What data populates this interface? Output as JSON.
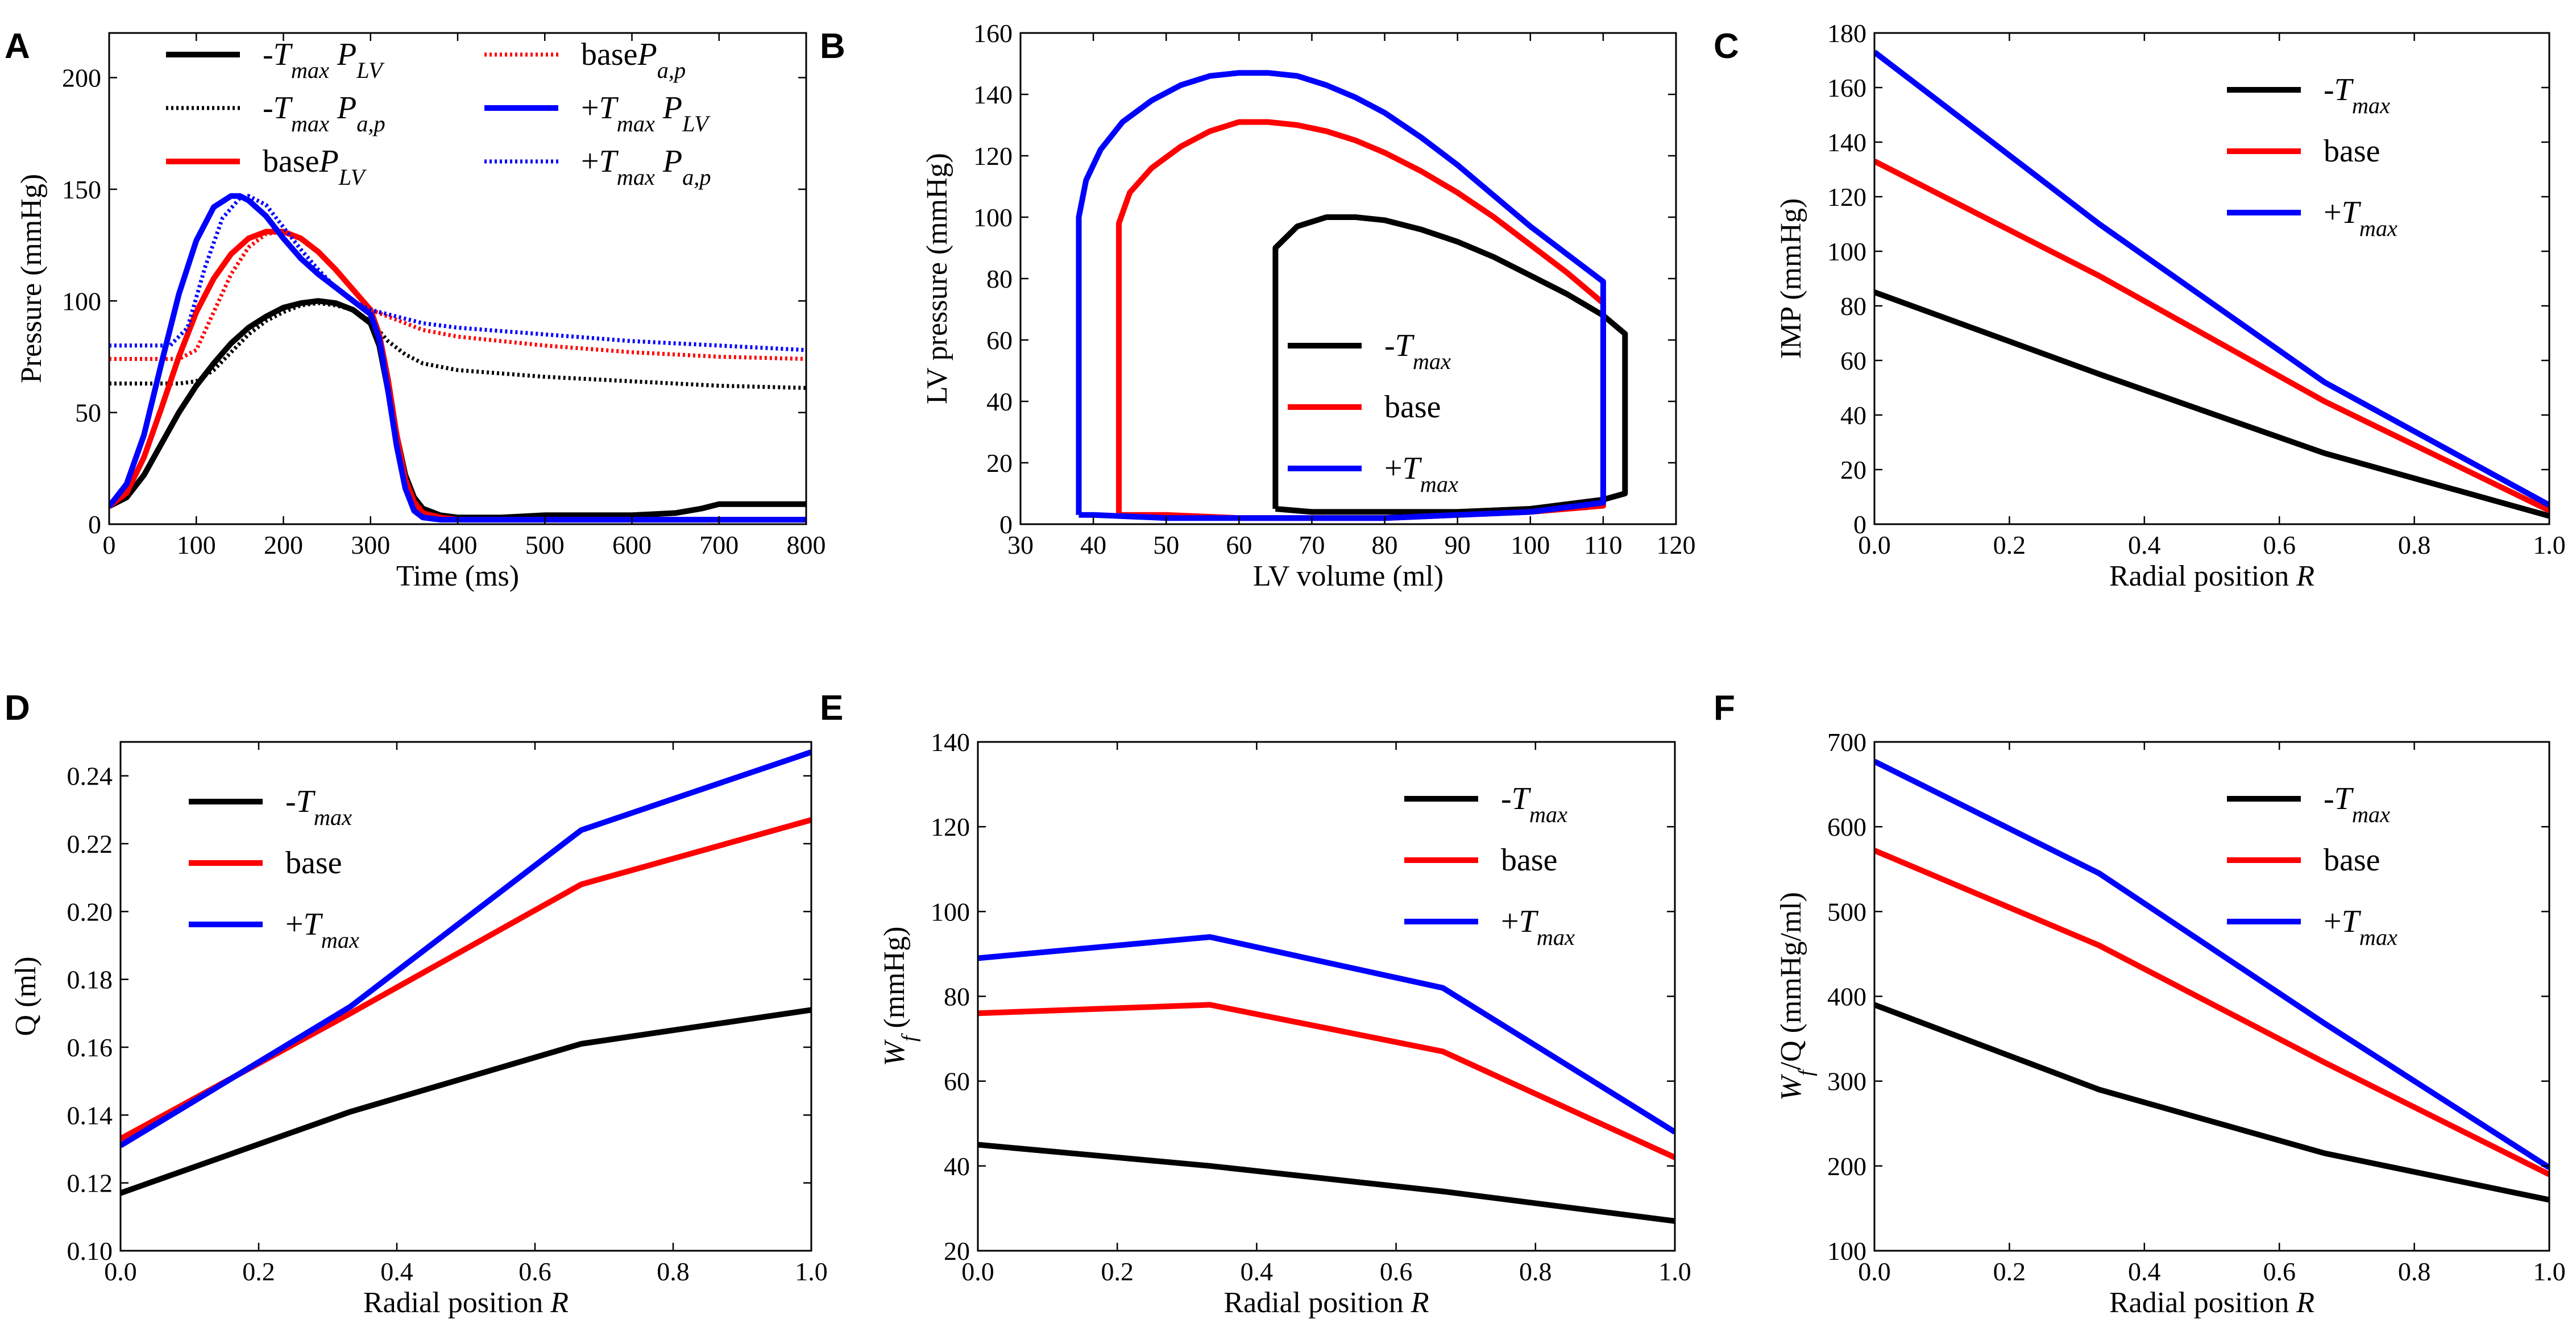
{
  "colors": {
    "minus": "#000000",
    "base": "#ff0000",
    "plus": "#0000ff"
  },
  "chart_data": [
    {
      "panel": "A",
      "type": "line",
      "xlabel": "Time (ms)",
      "ylabel": "Pressure (mmHg)",
      "xlim": [
        0,
        800
      ],
      "ylim": [
        0,
        220
      ],
      "xticks": [
        0,
        100,
        200,
        300,
        400,
        500,
        600,
        700,
        800
      ],
      "yticks": [
        0,
        50,
        100,
        150,
        200
      ],
      "legend": {
        "placement": "top",
        "columns": 2
      },
      "series": [
        {
          "name": "-T_max P_LV",
          "legend_main": "-T",
          "legend_sub": "max",
          "legend_tail": " P",
          "legend_tail_sub": "LV",
          "color": "#000000",
          "dashed": false,
          "x": [
            0,
            20,
            40,
            60,
            80,
            100,
            120,
            140,
            160,
            180,
            200,
            220,
            240,
            260,
            280,
            300,
            310,
            320,
            330,
            340,
            350,
            360,
            380,
            400,
            450,
            500,
            550,
            600,
            650,
            680,
            700,
            720,
            750,
            800
          ],
          "y": [
            8,
            12,
            22,
            36,
            50,
            62,
            72,
            81,
            88,
            93,
            97,
            99,
            100,
            99,
            96,
            90,
            80,
            60,
            40,
            22,
            12,
            7,
            4,
            3,
            3,
            4,
            4,
            4,
            5,
            7,
            9,
            9,
            9,
            9
          ]
        },
        {
          "name": "-T_max P_a,p",
          "legend_main": "-T",
          "legend_sub": "max",
          "legend_tail": " P",
          "legend_tail_sub": "a,p",
          "color": "#000000",
          "dashed": true,
          "x": [
            0,
            40,
            80,
            100,
            120,
            140,
            160,
            180,
            200,
            220,
            240,
            260,
            280,
            300,
            320,
            340,
            360,
            400,
            500,
            600,
            700,
            800
          ],
          "y": [
            63,
            63,
            63,
            64,
            69,
            77,
            85,
            91,
            95,
            98,
            99,
            98,
            96,
            91,
            82,
            76,
            72,
            69,
            66,
            64,
            62,
            61
          ]
        },
        {
          "name": "base P_LV",
          "legend_main": "base",
          "legend_sub": "",
          "legend_tail": "P",
          "legend_tail_sub": "LV",
          "color": "#ff0000",
          "dashed": false,
          "x": [
            0,
            20,
            40,
            60,
            80,
            100,
            120,
            140,
            160,
            180,
            200,
            220,
            240,
            260,
            280,
            300,
            310,
            320,
            330,
            340,
            350,
            360,
            380,
            400,
            500,
            600,
            700,
            800
          ],
          "y": [
            8,
            14,
            30,
            52,
            75,
            95,
            110,
            121,
            128,
            131,
            131,
            128,
            122,
            114,
            105,
            96,
            85,
            65,
            40,
            20,
            10,
            5,
            3,
            2,
            2,
            2,
            2,
            2
          ]
        },
        {
          "name": "base P_a,p",
          "legend_main": "base",
          "legend_sub": "",
          "legend_tail": "P",
          "legend_tail_sub": "a,p",
          "color": "#ff0000",
          "dashed": true,
          "x": [
            0,
            40,
            80,
            100,
            120,
            140,
            160,
            180,
            200,
            220,
            240,
            260,
            280,
            300,
            320,
            340,
            360,
            400,
            500,
            600,
            700,
            800
          ],
          "y": [
            74,
            74,
            74,
            78,
            95,
            112,
            124,
            130,
            131,
            128,
            122,
            114,
            105,
            96,
            93,
            90,
            87,
            84,
            80,
            77,
            75,
            74
          ]
        },
        {
          "name": "+T_max P_LV",
          "legend_main": "+T",
          "legend_sub": "max",
          "legend_tail": " P",
          "legend_tail_sub": "LV",
          "color": "#0000ff",
          "dashed": false,
          "x": [
            0,
            20,
            40,
            60,
            80,
            100,
            120,
            140,
            150,
            160,
            180,
            200,
            220,
            240,
            260,
            280,
            300,
            310,
            320,
            330,
            340,
            350,
            360,
            380,
            400,
            500,
            600,
            700,
            800
          ],
          "y": [
            8,
            18,
            40,
            72,
            103,
            127,
            142,
            147,
            147,
            145,
            138,
            128,
            119,
            112,
            106,
            100,
            94,
            83,
            60,
            35,
            16,
            6,
            3,
            2,
            2,
            2,
            2,
            2,
            2
          ]
        },
        {
          "name": "+T_max P_a,p",
          "legend_main": "+T",
          "legend_sub": "max",
          "legend_tail": " P",
          "legend_tail_sub": "a,p",
          "color": "#0000ff",
          "dashed": true,
          "x": [
            0,
            40,
            70,
            90,
            110,
            130,
            150,
            160,
            180,
            200,
            220,
            240,
            260,
            280,
            300,
            320,
            340,
            360,
            400,
            500,
            600,
            700,
            800
          ],
          "y": [
            80,
            80,
            80,
            88,
            115,
            137,
            146,
            147,
            143,
            133,
            123,
            114,
            106,
            100,
            96,
            94,
            92,
            90,
            88,
            85,
            82,
            80,
            78
          ]
        }
      ]
    },
    {
      "panel": "B",
      "type": "line",
      "xlabel": "LV volume (ml)",
      "ylabel": "LV pressure (mmHg)",
      "xlim": [
        30,
        120
      ],
      "ylim": [
        0,
        160
      ],
      "xticks": [
        30,
        40,
        50,
        60,
        70,
        80,
        90,
        100,
        110,
        120
      ],
      "yticks": [
        0,
        20,
        40,
        60,
        80,
        100,
        120,
        140,
        160
      ],
      "legend": {
        "placement": "lower-right"
      },
      "series": [
        {
          "name": "-T_max",
          "legend_main": "-T",
          "legend_sub": "max",
          "color": "#000000",
          "x": [
            65,
            65,
            68,
            72,
            76,
            80,
            85,
            90,
            95,
            100,
            105,
            110,
            113,
            113,
            110,
            100,
            90,
            80,
            70,
            65
          ],
          "y": [
            5,
            90,
            97,
            100,
            100,
            99,
            96,
            92,
            87,
            81,
            75,
            68,
            62,
            10,
            8,
            5,
            4,
            4,
            4,
            5
          ]
        },
        {
          "name": "base",
          "legend_main": "base",
          "legend_sub": "",
          "color": "#ff0000",
          "x": [
            43.5,
            43.5,
            45,
            48,
            52,
            56,
            60,
            64,
            68,
            72,
            76,
            80,
            85,
            90,
            95,
            100,
            105,
            110,
            110,
            100,
            90,
            80,
            70,
            60,
            50,
            43.5
          ],
          "y": [
            3,
            98,
            108,
            116,
            123,
            128,
            131,
            131,
            130,
            128,
            125,
            121,
            115,
            108,
            100,
            91,
            82,
            72,
            6,
            4,
            3,
            2,
            2,
            2,
            3,
            3
          ]
        },
        {
          "name": "+T_max",
          "legend_main": "+T",
          "legend_sub": "max",
          "color": "#0000ff",
          "x": [
            38,
            38,
            39,
            41,
            44,
            48,
            52,
            56,
            60,
            64,
            68,
            72,
            76,
            80,
            85,
            90,
            95,
            100,
            105,
            110,
            110,
            100,
            90,
            80,
            70,
            60,
            50,
            40,
            38
          ],
          "y": [
            3,
            100,
            112,
            122,
            131,
            138,
            143,
            146,
            147,
            147,
            146,
            143,
            139,
            134,
            126,
            117,
            107,
            97,
            88,
            79,
            7,
            4,
            3,
            2,
            2,
            2,
            2,
            3,
            3
          ]
        }
      ]
    },
    {
      "panel": "C",
      "type": "line",
      "xlabel": "Radial position R",
      "ylabel": "IMP (mmHg)",
      "xlim": [
        0,
        1
      ],
      "ylim": [
        0,
        180
      ],
      "xticks": [
        0.0,
        0.2,
        0.4,
        0.6,
        0.8,
        1.0
      ],
      "yticks": [
        0,
        20,
        40,
        60,
        80,
        100,
        120,
        140,
        160,
        180
      ],
      "legend": {
        "placement": "top-right"
      },
      "series": [
        {
          "name": "-T_max",
          "legend_main": "-T",
          "legend_sub": "max",
          "color": "#000000",
          "x": [
            0,
            0.333,
            0.667,
            1.0
          ],
          "y": [
            85,
            55,
            26,
            3
          ]
        },
        {
          "name": "base",
          "legend_main": "base",
          "legend_sub": "",
          "color": "#ff0000",
          "x": [
            0,
            0.333,
            0.667,
            1.0
          ],
          "y": [
            133,
            91,
            45,
            5
          ]
        },
        {
          "name": "+T_max",
          "legend_main": "+T",
          "legend_sub": "max",
          "color": "#0000ff",
          "x": [
            0,
            0.333,
            0.667,
            1.0
          ],
          "y": [
            173,
            110,
            52,
            7
          ]
        }
      ]
    },
    {
      "panel": "D",
      "type": "line",
      "xlabel": "Radial position R",
      "ylabel": "Q (ml)",
      "xlim": [
        0,
        1
      ],
      "ylim": [
        0.1,
        0.25
      ],
      "xticks": [
        0.0,
        0.2,
        0.4,
        0.6,
        0.8,
        1.0
      ],
      "yticks": [
        0.1,
        0.12,
        0.14,
        0.16,
        0.18,
        0.2,
        0.22,
        0.24
      ],
      "legend": {
        "placement": "top-left"
      },
      "series": [
        {
          "name": "-T_max",
          "legend_main": "-T",
          "legend_sub": "max",
          "color": "#000000",
          "x": [
            0,
            0.333,
            0.667,
            1.0
          ],
          "y": [
            0.117,
            0.141,
            0.161,
            0.171
          ]
        },
        {
          "name": "base",
          "legend_main": "base",
          "legend_sub": "",
          "color": "#ff0000",
          "x": [
            0,
            0.333,
            0.667,
            1.0
          ],
          "y": [
            0.133,
            0.17,
            0.208,
            0.227
          ]
        },
        {
          "name": "+T_max",
          "legend_main": "+T",
          "legend_sub": "max",
          "color": "#0000ff",
          "x": [
            0,
            0.333,
            0.667,
            1.0
          ],
          "y": [
            0.131,
            0.172,
            0.224,
            0.247
          ]
        }
      ]
    },
    {
      "panel": "E",
      "type": "line",
      "xlabel": "Radial position R",
      "ylabel": "W_f (mmHg)",
      "xlim": [
        0,
        1
      ],
      "ylim": [
        20,
        140
      ],
      "xticks": [
        0.0,
        0.2,
        0.4,
        0.6,
        0.8,
        1.0
      ],
      "yticks": [
        20,
        40,
        60,
        80,
        100,
        120,
        140
      ],
      "legend": {
        "placement": "top-right"
      },
      "series": [
        {
          "name": "-T_max",
          "legend_main": "-T",
          "legend_sub": "max",
          "color": "#000000",
          "x": [
            0,
            0.333,
            0.667,
            1.0
          ],
          "y": [
            45,
            40,
            34,
            27
          ]
        },
        {
          "name": "base",
          "legend_main": "base",
          "legend_sub": "",
          "color": "#ff0000",
          "x": [
            0,
            0.333,
            0.667,
            1.0
          ],
          "y": [
            76,
            78,
            67,
            42
          ]
        },
        {
          "name": "+T_max",
          "legend_main": "+T",
          "legend_sub": "max",
          "color": "#0000ff",
          "x": [
            0,
            0.333,
            0.667,
            1.0
          ],
          "y": [
            89,
            94,
            82,
            48
          ]
        }
      ]
    },
    {
      "panel": "F",
      "type": "line",
      "xlabel": "Radial position R",
      "ylabel": "W_f/Q (mmHg/ml)",
      "xlim": [
        0,
        1
      ],
      "ylim": [
        100,
        700
      ],
      "xticks": [
        0.0,
        0.2,
        0.4,
        0.6,
        0.8,
        1.0
      ],
      "yticks": [
        100,
        200,
        300,
        400,
        500,
        600,
        700
      ],
      "legend": {
        "placement": "top-right"
      },
      "series": [
        {
          "name": "-T_max",
          "legend_main": "-T",
          "legend_sub": "max",
          "color": "#000000",
          "x": [
            0,
            0.333,
            0.667,
            1.0
          ],
          "y": [
            390,
            290,
            215,
            160
          ]
        },
        {
          "name": "base",
          "legend_main": "base",
          "legend_sub": "",
          "color": "#ff0000",
          "x": [
            0,
            0.333,
            0.667,
            1.0
          ],
          "y": [
            572,
            460,
            322,
            190
          ]
        },
        {
          "name": "+T_max",
          "legend_main": "+T",
          "legend_sub": "max",
          "color": "#0000ff",
          "x": [
            0,
            0.333,
            0.667,
            1.0
          ],
          "y": [
            677,
            545,
            368,
            198
          ]
        }
      ]
    }
  ]
}
